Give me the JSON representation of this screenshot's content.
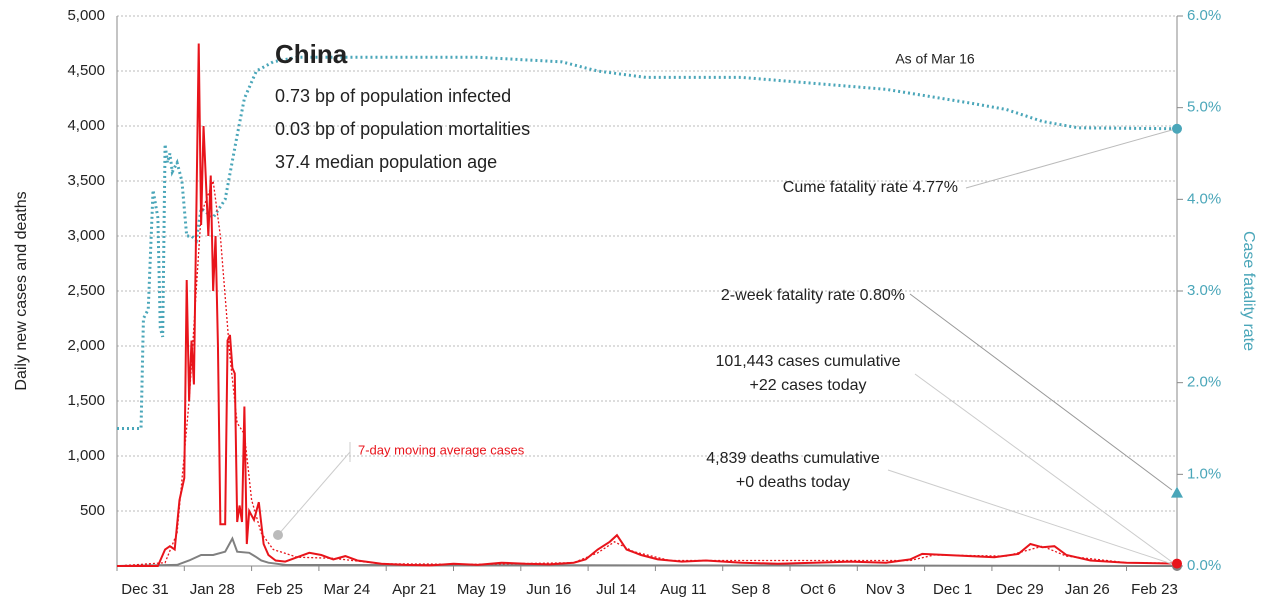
{
  "chart_data": {
    "type": "line",
    "title": "China",
    "subtitle_lines": [
      "0.73 bp of population infected",
      "0.03 bp of population mortalities",
      "37.4 median population age"
    ],
    "annotations": {
      "as_of": "As of Mar 16",
      "cume": "Cume fatality rate 4.77%",
      "two_week": "2-week fatality rate 0.80%",
      "cases1": "101,443 cases cumulative",
      "cases2": "+22 cases today",
      "deaths1": "4,839 deaths cumulative",
      "deaths2": "+0 deaths today",
      "moving_avg": "7-day moving average cases"
    },
    "ylabel": "Daily new cases and deaths",
    "y2label": "Case fatality rate",
    "xlim": [
      0,
      441
    ],
    "xticks": [
      {
        "value": 0,
        "label": "Dec 31"
      },
      {
        "value": 28,
        "label": "Jan 28"
      },
      {
        "value": 56,
        "label": "Feb 25"
      },
      {
        "value": 84,
        "label": "Mar 24"
      },
      {
        "value": 112,
        "label": "Apr 21"
      },
      {
        "value": 140,
        "label": "May 19"
      },
      {
        "value": 168,
        "label": "Jun 16"
      },
      {
        "value": 196,
        "label": "Jul 14"
      },
      {
        "value": 224,
        "label": "Aug 11"
      },
      {
        "value": 252,
        "label": "Sep 8"
      },
      {
        "value": 280,
        "label": "Oct 6"
      },
      {
        "value": 308,
        "label": "Nov 3"
      },
      {
        "value": 336,
        "label": "Dec 1"
      },
      {
        "value": 364,
        "label": "Dec 29"
      },
      {
        "value": 392,
        "label": "Jan 26"
      },
      {
        "value": 420,
        "label": "Feb 23"
      }
    ],
    "ylim": [
      0,
      5000
    ],
    "yticks": [
      {
        "value": 500,
        "label": "500"
      },
      {
        "value": 1000,
        "label": "1,000"
      },
      {
        "value": 1500,
        "label": "1,500"
      },
      {
        "value": 2000,
        "label": "2,000"
      },
      {
        "value": 2500,
        "label": "2,500"
      },
      {
        "value": 3000,
        "label": "3,000"
      },
      {
        "value": 3500,
        "label": "3,500"
      },
      {
        "value": 4000,
        "label": "4,000"
      },
      {
        "value": 4500,
        "label": "4,500"
      },
      {
        "value": 5000,
        "label": "5,000"
      }
    ],
    "y2lim": [
      0,
      6
    ],
    "y2ticks": [
      {
        "value": 0,
        "label": "0.0%"
      },
      {
        "value": 1,
        "label": "1.0%"
      },
      {
        "value": 2,
        "label": "2.0%"
      },
      {
        "value": 3,
        "label": "3.0%"
      },
      {
        "value": 4,
        "label": "4.0%"
      },
      {
        "value": 5,
        "label": "5.0%"
      },
      {
        "value": 6,
        "label": "6.0%"
      }
    ],
    "grid": true,
    "series": [
      {
        "name": "Daily new cases",
        "color": "#e8141b",
        "style": "solid",
        "width": 2,
        "x": [
          0,
          10,
          17,
          20,
          22,
          24,
          26,
          28,
          29,
          30,
          31,
          32,
          33,
          34,
          35,
          36,
          37,
          38,
          39,
          40,
          41,
          42,
          43,
          45,
          46,
          47,
          48,
          49,
          50,
          51,
          52,
          53,
          54,
          55,
          57,
          59,
          61,
          63,
          66,
          70,
          75,
          80,
          85,
          90,
          95,
          100,
          110,
          120,
          130,
          140,
          150,
          160,
          170,
          180,
          190,
          195,
          200,
          205,
          208,
          212,
          218,
          225,
          235,
          245,
          260,
          275,
          290,
          305,
          320,
          330,
          335,
          345,
          355,
          365,
          375,
          380,
          385,
          390,
          395,
          405,
          420,
          441
        ],
        "values": [
          0,
          0,
          0,
          150,
          180,
          150,
          600,
          800,
          2600,
          1500,
          2050,
          1650,
          3200,
          4750,
          3100,
          4000,
          3500,
          3000,
          3550,
          2500,
          3000,
          2000,
          380,
          380,
          2050,
          2100,
          1800,
          1750,
          400,
          550,
          400,
          1450,
          200,
          500,
          420,
          580,
          200,
          100,
          50,
          40,
          80,
          120,
          100,
          60,
          90,
          50,
          20,
          10,
          5,
          20,
          10,
          30,
          20,
          15,
          30,
          60,
          150,
          220,
          280,
          150,
          100,
          60,
          40,
          50,
          30,
          20,
          30,
          40,
          30,
          60,
          110,
          100,
          90,
          80,
          110,
          200,
          170,
          180,
          100,
          50,
          30,
          22
        ]
      },
      {
        "name": "7-day moving average cases",
        "color": "#e8141b",
        "style": "dotted",
        "width": 1.3,
        "x": [
          0,
          20,
          25,
          30,
          35,
          40,
          43,
          47,
          50,
          53,
          56,
          60,
          65,
          75,
          90,
          110,
          150,
          190,
          200,
          207,
          215,
          230,
          330,
          340,
          370,
          385,
          395,
          420,
          441
        ],
        "values": [
          0,
          30,
          300,
          1500,
          3200,
          3500,
          3000,
          1900,
          1300,
          1200,
          600,
          300,
          150,
          80,
          70,
          20,
          15,
          30,
          120,
          220,
          130,
          50,
          50,
          100,
          90,
          180,
          90,
          30,
          25
        ]
      },
      {
        "name": "Daily new deaths",
        "color": "#808080",
        "style": "solid",
        "width": 2,
        "x": [
          0,
          25,
          30,
          35,
          40,
          45,
          48,
          50,
          55,
          58,
          60,
          63,
          70,
          441
        ],
        "values": [
          0,
          10,
          50,
          100,
          100,
          130,
          250,
          130,
          120,
          80,
          50,
          30,
          10,
          0
        ]
      },
      {
        "name": "Case fatality rate",
        "color": "#4aa6b9",
        "style": "dotted",
        "width": 3,
        "axis": "y2",
        "x": [
          0,
          10,
          11,
          13,
          15,
          17,
          18,
          19,
          20,
          21,
          22,
          23,
          25,
          27,
          29,
          31,
          33,
          35,
          40,
          45,
          50,
          53,
          58,
          65,
          75,
          100,
          150,
          185,
          200,
          220,
          260,
          320,
          355,
          370,
          385,
          400,
          441
        ],
        "values": [
          1.5,
          1.5,
          2.7,
          2.8,
          4.1,
          3.8,
          2.6,
          2.5,
          4.6,
          4.4,
          4.5,
          4.3,
          4.4,
          4.2,
          3.6,
          3.6,
          3.55,
          3.9,
          3.8,
          4.0,
          4.7,
          5.1,
          5.4,
          5.5,
          5.55,
          5.55,
          5.55,
          5.5,
          5.4,
          5.33,
          5.33,
          5.2,
          5.05,
          4.98,
          4.85,
          4.78,
          4.77
        ]
      }
    ],
    "two_week_fatality_rate": {
      "x": 441,
      "value": 0.8
    }
  }
}
